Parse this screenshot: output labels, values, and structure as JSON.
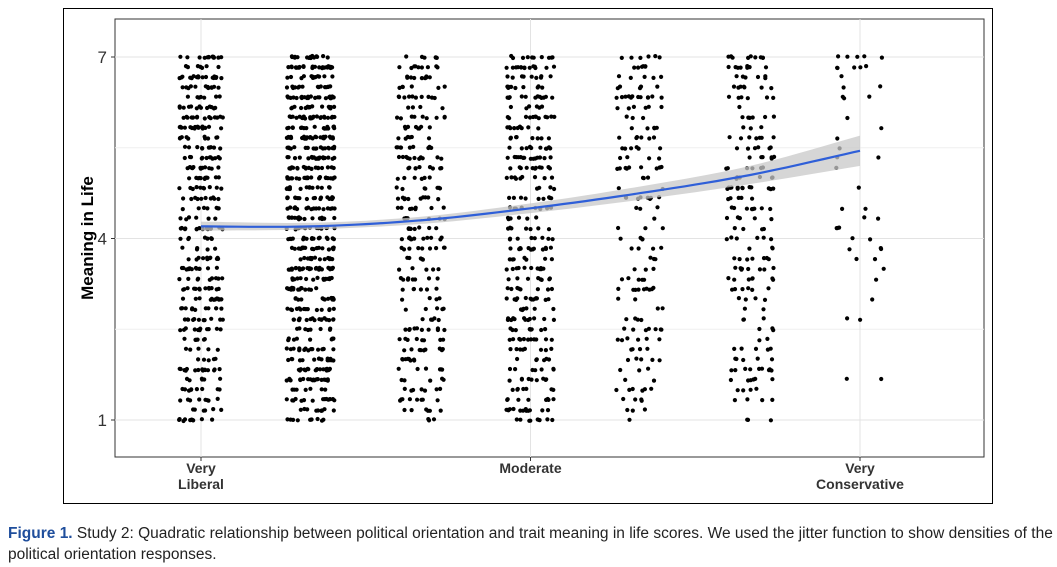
{
  "chart_data": {
    "type": "scatter",
    "ylabel": "Meaning in Life",
    "xlabel": "",
    "x_ticks": [
      {
        "pos": 1,
        "lines": [
          "Very",
          "Liberal"
        ]
      },
      {
        "pos": 4,
        "lines": [
          "Moderate"
        ]
      },
      {
        "pos": 7,
        "lines": [
          "Very",
          "Conservative"
        ]
      }
    ],
    "y_ticks": [
      1,
      4,
      7
    ],
    "xlim": [
      0.45,
      7.8
    ],
    "ylim": [
      0.4,
      7.6
    ],
    "grid": true,
    "point_color": "#000000",
    "fit": {
      "type": "quadratic",
      "color": "#2f5fd8",
      "band_color": "#c8c8c8",
      "x": [
        1,
        2,
        3,
        4,
        5,
        6,
        7
      ],
      "y": [
        4.2,
        4.2,
        4.3,
        4.5,
        4.75,
        5.05,
        5.45
      ],
      "lower": [
        4.13,
        4.15,
        4.24,
        4.42,
        4.64,
        4.9,
        5.2
      ],
      "upper": [
        4.28,
        4.26,
        4.36,
        4.58,
        4.86,
        5.2,
        5.7
      ]
    },
    "densities": [
      {
        "x": 1,
        "n": 380,
        "jitter": 0.2
      },
      {
        "x": 2,
        "n": 620,
        "jitter": 0.22
      },
      {
        "x": 3,
        "n": 270,
        "jitter": 0.22
      },
      {
        "x": 4,
        "n": 340,
        "jitter": 0.22
      },
      {
        "x": 5,
        "n": 170,
        "jitter": 0.22
      },
      {
        "x": 6,
        "n": 200,
        "jitter": 0.22
      },
      {
        "x": 7,
        "n": 45,
        "jitter": 0.22
      }
    ]
  },
  "caption": {
    "label": "Figure",
    "number": "1.",
    "text": " Study 2: Quadratic relationship between political orientation and trait meaning in life scores. We used the jitter function to show densities of the political orientation responses."
  }
}
